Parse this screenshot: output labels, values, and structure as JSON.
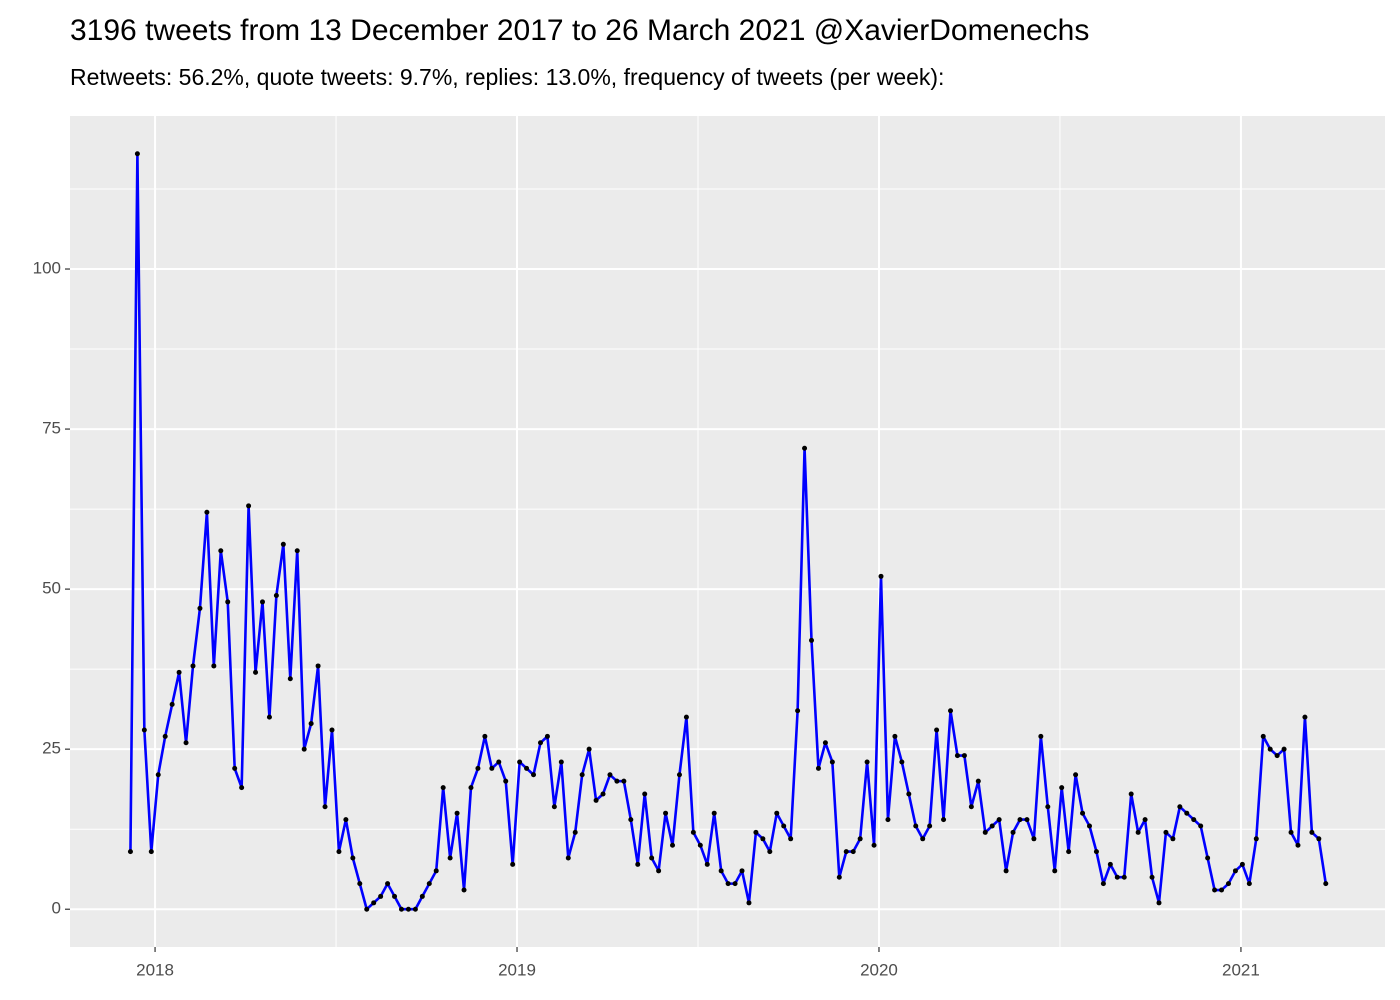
{
  "chart_data": {
    "type": "line",
    "title": "3196 tweets from 13 December 2017 to 26 March 2021 @XavierDomenechs",
    "subtitle": "Retweets: 56.2%, quote tweets: 9.7%, replies: 13.0%, frequency of tweets (per week):",
    "x": [
      2017.932,
      2017.9512,
      2017.9704,
      2017.9896,
      2018.0088,
      2018.028,
      2018.0472,
      2018.0664,
      2018.0856,
      2018.1048,
      2018.124,
      2018.1432,
      2018.1624,
      2018.1816,
      2018.2008,
      2018.22,
      2018.2392,
      2018.2584,
      2018.2776,
      2018.2968,
      2018.316,
      2018.3352,
      2018.3544,
      2018.3736,
      2018.3928,
      2018.412,
      2018.4312,
      2018.4504,
      2018.4696,
      2018.4888,
      2018.508,
      2018.5272,
      2018.5464,
      2018.5656,
      2018.5848,
      2018.604,
      2018.6232,
      2018.6424,
      2018.6616,
      2018.6808,
      2018.7,
      2018.7192,
      2018.7384,
      2018.7576,
      2018.7768,
      2018.796,
      2018.8152,
      2018.8344,
      2018.8536,
      2018.8728,
      2018.892,
      2018.9112,
      2018.9304,
      2018.9496,
      2018.9688,
      2018.988,
      2019.0072,
      2019.0264,
      2019.0456,
      2019.0648,
      2019.084,
      2019.1032,
      2019.1224,
      2019.1416,
      2019.1608,
      2019.18,
      2019.1992,
      2019.2184,
      2019.2376,
      2019.2568,
      2019.276,
      2019.2952,
      2019.3144,
      2019.3336,
      2019.3528,
      2019.372,
      2019.3912,
      2019.4104,
      2019.4296,
      2019.4488,
      2019.468,
      2019.4872,
      2019.5064,
      2019.5256,
      2019.5448,
      2019.564,
      2019.5832,
      2019.6024,
      2019.6216,
      2019.6408,
      2019.66,
      2019.6792,
      2019.6984,
      2019.7176,
      2019.7368,
      2019.756,
      2019.7752,
      2019.7944,
      2019.8136,
      2019.8328,
      2019.852,
      2019.8712,
      2019.8904,
      2019.9096,
      2019.9288,
      2019.948,
      2019.9672,
      2019.9864,
      2020.0056,
      2020.0248,
      2020.044,
      2020.0632,
      2020.0824,
      2020.1016,
      2020.1208,
      2020.14,
      2020.1592,
      2020.1784,
      2020.1976,
      2020.2168,
      2020.236,
      2020.2552,
      2020.2744,
      2020.2936,
      2020.3128,
      2020.332,
      2020.3512,
      2020.3704,
      2020.3896,
      2020.4088,
      2020.428,
      2020.4472,
      2020.4664,
      2020.4856,
      2020.5048,
      2020.524,
      2020.5432,
      2020.5624,
      2020.5816,
      2020.6008,
      2020.62,
      2020.6392,
      2020.6584,
      2020.6776,
      2020.6968,
      2020.716,
      2020.7352,
      2020.7544,
      2020.7736,
      2020.7928,
      2020.812,
      2020.8312,
      2020.8504,
      2020.8696,
      2020.8888,
      2020.908,
      2020.9272,
      2020.9464,
      2020.9656,
      2020.9848,
      2021.004,
      2021.0232,
      2021.0424,
      2021.0616,
      2021.0808,
      2021.1,
      2021.1192,
      2021.1384,
      2021.1576,
      2021.1768,
      2021.196,
      2021.2152,
      2021.2344
    ],
    "values": [
      9,
      118,
      28,
      9,
      21,
      27,
      32,
      37,
      26,
      38,
      47,
      62,
      38,
      56,
      48,
      22,
      19,
      63,
      37,
      48,
      30,
      49,
      57,
      36,
      56,
      25,
      29,
      38,
      16,
      28,
      9,
      14,
      8,
      4,
      0,
      1,
      2,
      4,
      2,
      0,
      0,
      0,
      2,
      4,
      6,
      19,
      8,
      15,
      3,
      19,
      22,
      27,
      22,
      23,
      20,
      7,
      23,
      22,
      21,
      26,
      27,
      16,
      23,
      8,
      12,
      21,
      25,
      17,
      18,
      21,
      20,
      20,
      14,
      7,
      18,
      8,
      6,
      15,
      10,
      21,
      30,
      12,
      10,
      7,
      15,
      6,
      4,
      4,
      6,
      1,
      12,
      11,
      9,
      15,
      13,
      11,
      31,
      72,
      42,
      22,
      26,
      23,
      5,
      9,
      9,
      11,
      23,
      10,
      52,
      14,
      27,
      23,
      18,
      13,
      11,
      13,
      28,
      14,
      31,
      24,
      24,
      16,
      20,
      12,
      13,
      14,
      6,
      12,
      14,
      14,
      11,
      27,
      16,
      6,
      19,
      9,
      21,
      15,
      13,
      9,
      4,
      7,
      5,
      5,
      18,
      12,
      14,
      5,
      1,
      12,
      11,
      16,
      15,
      14,
      13,
      8,
      3,
      3,
      4,
      6,
      7,
      4,
      11,
      27,
      25,
      24,
      25,
      12,
      10,
      30,
      12,
      11,
      4
    ],
    "line_color": "#0000ff",
    "point_color": "#000000",
    "xlim": [
      2017.765,
      2021.398
    ],
    "xticks": [
      2018,
      2019,
      2020,
      2021
    ],
    "ylim": [
      -5.9,
      123.9
    ],
    "yticks": [
      0,
      25,
      50,
      75,
      100
    ],
    "grid": true
  }
}
